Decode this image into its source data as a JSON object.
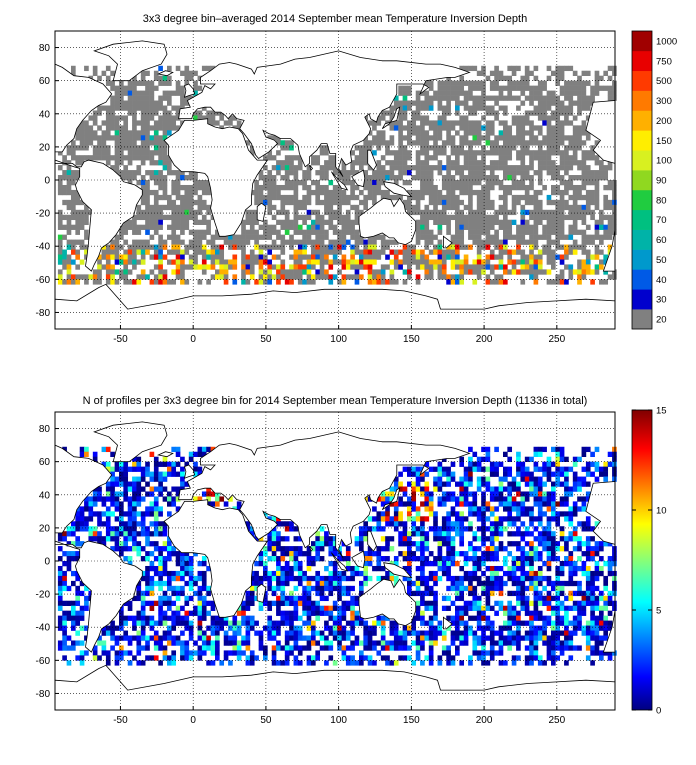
{
  "chart_data": [
    {
      "type": "heatmap",
      "title": "3x3 degree bin–averaged 2014 September mean Temperature Inversion Depth",
      "xlabel": "",
      "ylabel": "",
      "xlim": [
        -95,
        290
      ],
      "ylim": [
        -90,
        90
      ],
      "x_ticks": [
        -50,
        0,
        50,
        100,
        150,
        200,
        250
      ],
      "y_ticks": [
        80,
        60,
        40,
        20,
        0,
        -20,
        -40,
        -60,
        -80
      ],
      "grid": true,
      "colorbar": {
        "type": "discrete",
        "labels": [
          "20",
          "30",
          "40",
          "50",
          "60",
          "70",
          "80",
          "90",
          "100",
          "150",
          "200",
          "300",
          "500",
          "750",
          "1000"
        ],
        "colors": [
          "#808080",
          "#0000cd",
          "#005ae6",
          "#0099cc",
          "#00b3a8",
          "#00c080",
          "#20cc40",
          "#90d820",
          "#d8f020",
          "#ffee00",
          "#ffb000",
          "#ff7a00",
          "#ff3a00",
          "#e80000",
          "#a00000"
        ]
      }
    },
    {
      "type": "heatmap",
      "title": "N of profiles per 3x3 degree bin for 2014 September mean Temperature Inversion Depth  (11336 in total)",
      "xlabel": "",
      "ylabel": "",
      "xlim": [
        -95,
        290
      ],
      "ylim": [
        -90,
        90
      ],
      "x_ticks": [
        -50,
        0,
        50,
        100,
        150,
        200,
        250
      ],
      "y_ticks": [
        80,
        60,
        40,
        20,
        0,
        -20,
        -40,
        -60,
        -80
      ],
      "grid": true,
      "colorbar": {
        "type": "continuous",
        "range": [
          0,
          15
        ],
        "ticks": [
          "0",
          "5",
          "10",
          "15"
        ]
      }
    }
  ]
}
